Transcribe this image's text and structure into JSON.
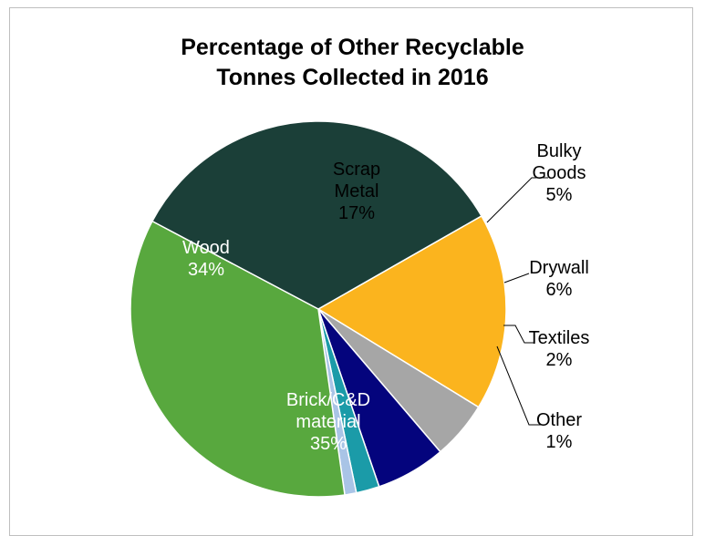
{
  "chart_data": {
    "type": "pie",
    "title_lines": [
      "Percentage of Other Recyclable",
      "Tonnes Collected in 2016"
    ],
    "slices": [
      {
        "name": "Scrap Metal",
        "value": 17,
        "label_lines": [
          "Scrap",
          "Metal",
          "17%"
        ],
        "color": "#fbb41e",
        "text_color": "#000000"
      },
      {
        "name": "Bulky Goods",
        "value": 5,
        "label_lines": [
          "Bulky",
          "Goods",
          "5%"
        ],
        "color": "#a6a6a6",
        "text_color": "#000000"
      },
      {
        "name": "Drywall",
        "value": 6,
        "label_lines": [
          "Drywall",
          "6%"
        ],
        "color": "#04047d",
        "text_color": "#000000"
      },
      {
        "name": "Textiles",
        "value": 2,
        "label_lines": [
          "Textiles",
          "2%"
        ],
        "color": "#1b9ba8",
        "text_color": "#000000"
      },
      {
        "name": "Other",
        "value": 1,
        "label_lines": [
          "Other",
          "1%"
        ],
        "color": "#a9c4e6",
        "text_color": "#000000"
      },
      {
        "name": "Brick/C&D material",
        "value": 35,
        "label_lines": [
          "Brick/C&D",
          "material",
          "35%"
        ],
        "color": "#58a83e",
        "text_color": "#ffffff"
      },
      {
        "name": "Wood",
        "value": 34,
        "label_lines": [
          "Wood",
          "34%"
        ],
        "color": "#1b3f38",
        "text_color": "#ffffff"
      }
    ]
  }
}
